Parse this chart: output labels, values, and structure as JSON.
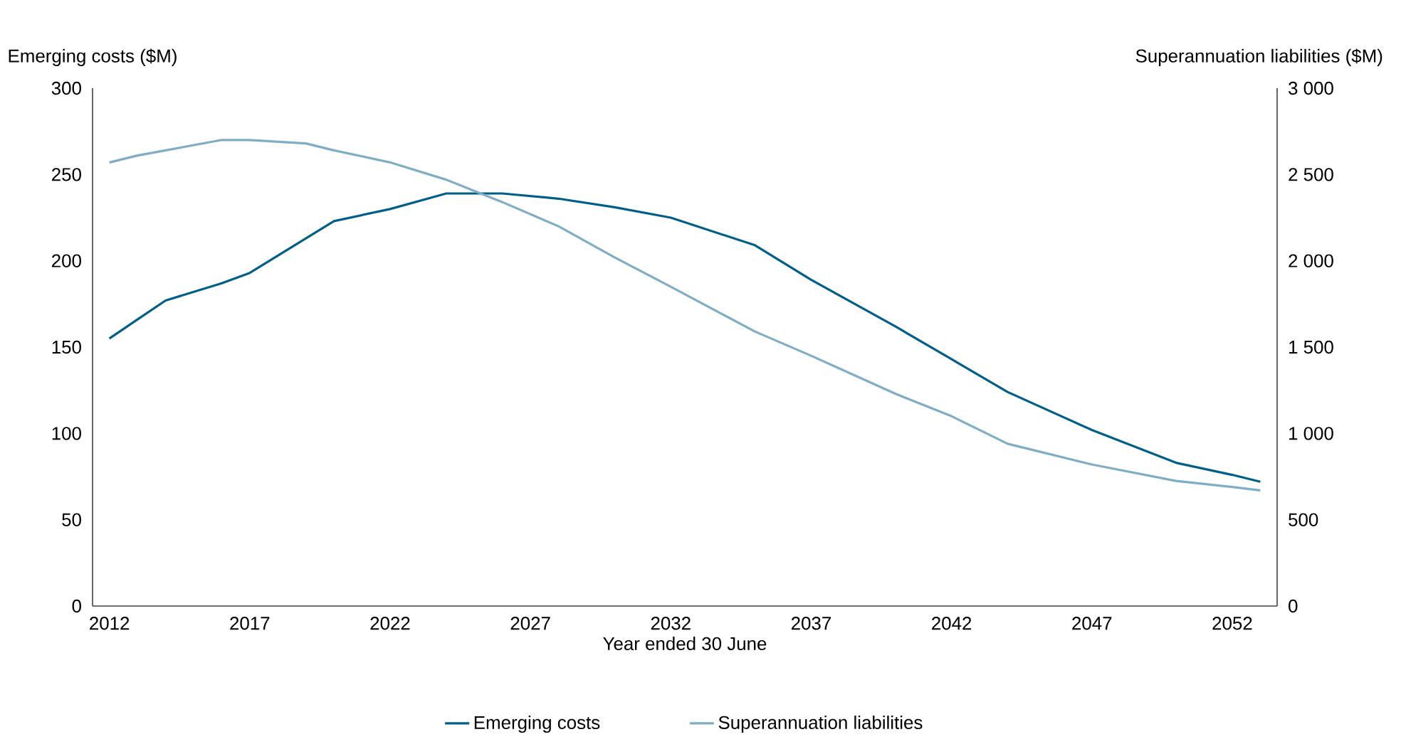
{
  "chart_data": {
    "type": "line",
    "xlabel": "Year ended 30 June",
    "ylabel": "Emerging costs ($M)",
    "y2label": "Superannuation liabilities ($M)",
    "x": [
      2012,
      2013,
      2014,
      2016,
      2017,
      2019,
      2020,
      2022,
      2024,
      2026,
      2028,
      2030,
      2032,
      2035,
      2037,
      2040,
      2042,
      2044,
      2047,
      2050,
      2052,
      2053
    ],
    "series": [
      {
        "name": "Emerging costs",
        "color": "#005f8a",
        "values": [
          155,
          166,
          177,
          187,
          193,
          213,
          223,
          230,
          239,
          239,
          236,
          231,
          225,
          209,
          189,
          162,
          143,
          124,
          102,
          83,
          76,
          72
        ]
      },
      {
        "name": "Superannuation liabilities",
        "color": "#7fadc6",
        "axis": "y2",
        "values": [
          2570,
          2610,
          2640,
          2700,
          2700,
          2680,
          2640,
          2570,
          2470,
          2340,
          2200,
          2020,
          1850,
          1590,
          1450,
          1230,
          1100,
          940,
          820,
          725,
          690,
          670
        ]
      }
    ],
    "xlim": [
      2011.4,
      2053.6
    ],
    "xticks": [
      2012,
      2017,
      2022,
      2027,
      2032,
      2037,
      2042,
      2047,
      2052
    ],
    "ylim": [
      0,
      300
    ],
    "yticks": [
      0,
      50,
      100,
      150,
      200,
      250,
      300
    ],
    "y2lim": [
      0,
      3000
    ],
    "y2ticks": [
      0,
      500,
      {
        "value": 1000,
        "label": "1 000"
      },
      {
        "value": 1500,
        "label": "1 500"
      },
      {
        "value": 2000,
        "label": "2 000"
      },
      {
        "value": 2500,
        "label": "2 500"
      },
      {
        "value": 3000,
        "label": "3 000"
      }
    ],
    "legend": "bottom",
    "line_style": "solid"
  }
}
